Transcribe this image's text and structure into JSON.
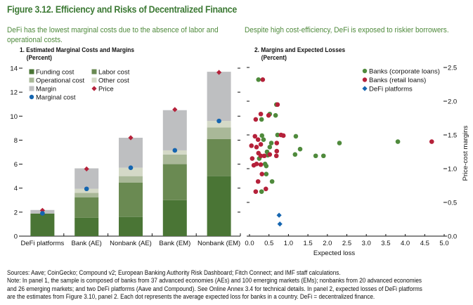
{
  "figure": {
    "title": "Figure 3.12. Efficiency and Risks of Decentralized Finance",
    "subtitle_left": "DeFi has the lowest marginal costs due to the absence of labor and operational costs.",
    "subtitle_right": "Despite high cost-efficiency, DeFi is exposed to riskier borrowers.",
    "panel1_title": "1. Estimated Marginal Costs and Margins",
    "panel1_unit": "(Percent)",
    "panel2_title": "2. Margins and Expected Losses",
    "panel2_unit": "(Percent)",
    "notes": [
      "Sources: Aave; CoinGecko; Compound v2; European Banking Authority Risk Dashboard; Fitch Connect; and IMF staff calculations.",
      "Note: In panel 1, the sample is composed of banks from 37 advanced economies (AEs) and 100 emerging markets (EMs); nonbanks from 20 advanced economies",
      "and 26 emerging markets; and two DeFi platforms (Aave and Compound). See Online Annex 3.4 for technical details. In panel 2, expected losses of DeFi platforms",
      "are the estimates from Figure 3.10, panel 2. Each dot represents the average expected loss for banks in a country. DeFi = decentralized finance."
    ]
  },
  "colors": {
    "title": "#3d7a35",
    "funding": "#4a7535",
    "labor": "#6a8a52",
    "operational": "#a9b898",
    "other": "#d4d9c7",
    "margin": "#bebfc1",
    "price": "#b5213a",
    "marginal_cost": "#1565b0",
    "corporate": "#4f8a3c",
    "retail": "#b5213a",
    "defi": "#1565b0"
  },
  "chart_data": [
    {
      "type": "bar",
      "stacked": true,
      "title": "1. Estimated Marginal Costs and Margins",
      "unit": "(Percent)",
      "xlabel": "",
      "ylabel": "",
      "ylim": [
        0,
        14
      ],
      "yticks": [
        0,
        2,
        4,
        6,
        8,
        10,
        12,
        14
      ],
      "legend_position": "top-left",
      "categories": [
        "DeFi platforms",
        "Bank (AE)",
        "Nonbank (AE)",
        "Bank (EM)",
        "Nonbank (EM)"
      ],
      "series": [
        {
          "name": "Funding cost",
          "key": "funding",
          "values": [
            1.88,
            1.53,
            1.6,
            3.0,
            5.0
          ]
        },
        {
          "name": "Labor cost",
          "key": "labor",
          "values": [
            0,
            1.71,
            2.87,
            3.0,
            3.1
          ]
        },
        {
          "name": "Operational cost",
          "key": "operational",
          "values": [
            0,
            0.36,
            0.53,
            0.8,
            0.95
          ]
        },
        {
          "name": "Other cost",
          "key": "other",
          "values": [
            0,
            0.34,
            0.7,
            0.35,
            0.55
          ]
        },
        {
          "name": "Margin",
          "key": "margin",
          "values": [
            0.3,
            1.71,
            2.5,
            3.35,
            4.1
          ]
        }
      ],
      "markers": [
        {
          "name": "Price",
          "key": "price",
          "shape": "diamond",
          "values": [
            2.15,
            5.6,
            8.2,
            10.55,
            13.65
          ]
        },
        {
          "name": "Marginal cost",
          "key": "marginal_cost",
          "shape": "circle",
          "values": [
            1.9,
            3.94,
            5.7,
            7.15,
            9.6
          ]
        }
      ],
      "legend": [
        {
          "name": "Funding cost",
          "key": "funding",
          "shape": "square"
        },
        {
          "name": "Labor cost",
          "key": "labor",
          "shape": "square"
        },
        {
          "name": "Operational cost",
          "key": "operational",
          "shape": "square"
        },
        {
          "name": "Other cost",
          "key": "other",
          "shape": "square"
        },
        {
          "name": "Margin",
          "key": "margin",
          "shape": "square"
        },
        {
          "name": "Price",
          "key": "price",
          "shape": "diamond"
        },
        {
          "name": "Marginal cost",
          "key": "marginal_cost",
          "shape": "circle"
        }
      ]
    },
    {
      "type": "scatter",
      "title": "2. Margins and Expected Losses",
      "unit": "(Percent)",
      "xlabel": "Expected loss",
      "ylabel": "Price-cost margins",
      "xlim": [
        0,
        5
      ],
      "ylim": [
        0,
        2.5
      ],
      "xticks": [
        "0.0",
        "0.5",
        "1.0",
        "1.5",
        "2.0",
        "2.5",
        "3.0",
        "3.5",
        "4.0",
        "4.5",
        "5.0"
      ],
      "yticks": [
        "0.0",
        "0.5",
        "1.0",
        "1.5",
        "2.0",
        "2.5"
      ],
      "y_axis_side": "right",
      "legend_position": "top-right",
      "series": [
        {
          "name": "Banks (corporate loans)",
          "key": "corporate",
          "shape": "circle",
          "points": [
            [
              0.23,
              2.32
            ],
            [
              0.69,
              1.95
            ],
            [
              0.52,
              1.81
            ],
            [
              0.67,
              1.79
            ],
            [
              0.31,
              1.73
            ],
            [
              0.32,
              1.49
            ],
            [
              0.36,
              1.43
            ],
            [
              0.72,
              1.5
            ],
            [
              1.19,
              1.48
            ],
            [
              0.56,
              1.38
            ],
            [
              0.52,
              1.32
            ],
            [
              1.3,
              1.29
            ],
            [
              0.45,
              1.25
            ],
            [
              1.17,
              1.21
            ],
            [
              1.7,
              1.19
            ],
            [
              1.9,
              1.19
            ],
            [
              0.47,
              1.2
            ],
            [
              0.25,
              1.15
            ],
            [
              0.4,
              1.07
            ],
            [
              0.43,
              1.04
            ],
            [
              0.43,
              0.92
            ],
            [
              0.58,
              0.81
            ],
            [
              0.31,
              0.66
            ],
            [
              2.31,
              1.38
            ],
            [
              3.81,
              1.4
            ]
          ]
        },
        {
          "name": "Banks (retail loans)",
          "key": "retail",
          "shape": "circle",
          "points": [
            [
              0.34,
              2.32
            ],
            [
              0.72,
              1.95
            ],
            [
              0.29,
              1.81
            ],
            [
              0.49,
              1.79
            ],
            [
              0.16,
              1.73
            ],
            [
              0.14,
              1.48
            ],
            [
              0.22,
              1.43
            ],
            [
              0.81,
              1.5
            ],
            [
              0.87,
              1.49
            ],
            [
              0.05,
              1.34
            ],
            [
              0.18,
              1.32
            ],
            [
              0.29,
              1.36
            ],
            [
              0.7,
              1.38
            ],
            [
              0.7,
              1.26
            ],
            [
              0.23,
              1.23
            ],
            [
              0.29,
              1.19
            ],
            [
              0.38,
              1.19
            ],
            [
              0.52,
              1.21
            ],
            [
              0.69,
              1.19
            ],
            [
              0.07,
              1.15
            ],
            [
              0.11,
              1.05
            ],
            [
              0.18,
              1.07
            ],
            [
              0.29,
              1.06
            ],
            [
              0.32,
              0.92
            ],
            [
              0.22,
              0.81
            ],
            [
              0.16,
              0.66
            ],
            [
              0.42,
              0.7
            ],
            [
              4.68,
              1.4
            ]
          ]
        },
        {
          "name": "DeFi platforms",
          "key": "defi",
          "shape": "diamond",
          "points": [
            [
              0.76,
              0.31
            ],
            [
              0.78,
              0.18
            ]
          ]
        }
      ]
    }
  ]
}
